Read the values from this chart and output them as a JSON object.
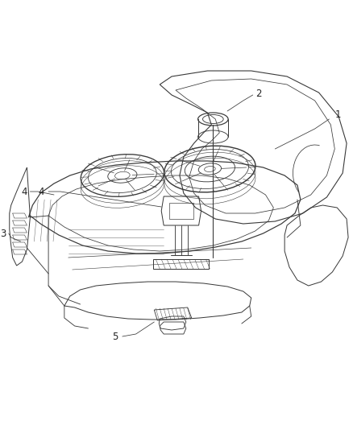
{
  "background_color": "#ffffff",
  "line_color": "#3a3a3a",
  "line_width": 0.8,
  "label_color": "#222222",
  "label_fontsize": 8.5,
  "fig_width": 4.38,
  "fig_height": 5.33,
  "dpi": 100
}
